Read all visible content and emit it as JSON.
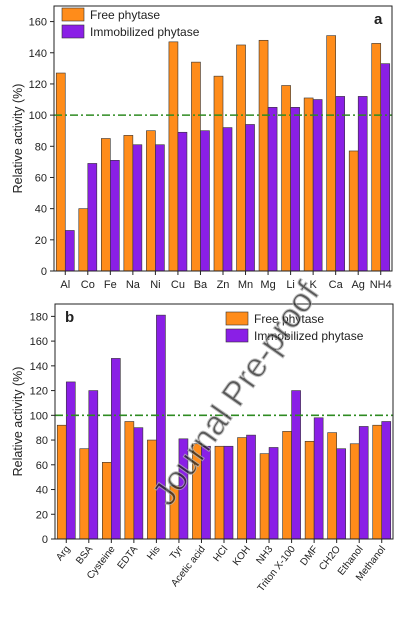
{
  "colors": {
    "free": "#FF8C1A",
    "immobilized": "#8A1FE6",
    "reference": "#2E8B22"
  },
  "watermark": "Journal Pre-proof",
  "chart_data": [
    {
      "panel": "a",
      "type": "bar",
      "ylabel": "Relative activity (%)",
      "ylim": [
        0,
        170
      ],
      "yticks": [
        0,
        20,
        40,
        60,
        80,
        100,
        120,
        140,
        160
      ],
      "reference_line": 100,
      "legend_position": "top-left",
      "categories": [
        "Al",
        "Co",
        "Fe",
        "Na",
        "Ni",
        "Cu",
        "Ba",
        "Zn",
        "Mn",
        "Mg",
        "Li",
        "K",
        "Ca",
        "Ag",
        "NH4"
      ],
      "series": [
        {
          "name": "Free phytase",
          "values": [
            127,
            40,
            85,
            87,
            90,
            147,
            134,
            125,
            145,
            148,
            119,
            111,
            151,
            77,
            146
          ]
        },
        {
          "name": "Immobilized phytase",
          "values": [
            26,
            69,
            71,
            81,
            81,
            89,
            90,
            92,
            94,
            105,
            105,
            110,
            112,
            112,
            133
          ]
        }
      ]
    },
    {
      "panel": "b",
      "type": "bar",
      "ylabel": "Relative activity (%)",
      "ylim": [
        0,
        190
      ],
      "yticks": [
        0,
        20,
        40,
        60,
        80,
        100,
        120,
        140,
        160,
        180
      ],
      "reference_line": 100,
      "legend_position": "top-right",
      "categories": [
        "Arg",
        "BSA",
        "Cysteine",
        "EDTA",
        "His",
        "Tyr",
        "Acetic acid",
        "HCl",
        "KOH",
        "NH3",
        "Triton X-100",
        "DMF",
        "CH2O",
        "Ethanol",
        "Methanol"
      ],
      "series": [
        {
          "name": "Free phytase",
          "values": [
            92,
            73,
            62,
            95,
            80,
            43,
            77,
            75,
            82,
            69,
            87,
            79,
            86,
            77,
            92
          ]
        },
        {
          "name": "Immobilized phytase",
          "values": [
            127,
            120,
            146,
            90,
            181,
            81,
            75,
            75,
            84,
            74,
            120,
            98,
            73,
            91,
            95
          ]
        }
      ]
    }
  ]
}
